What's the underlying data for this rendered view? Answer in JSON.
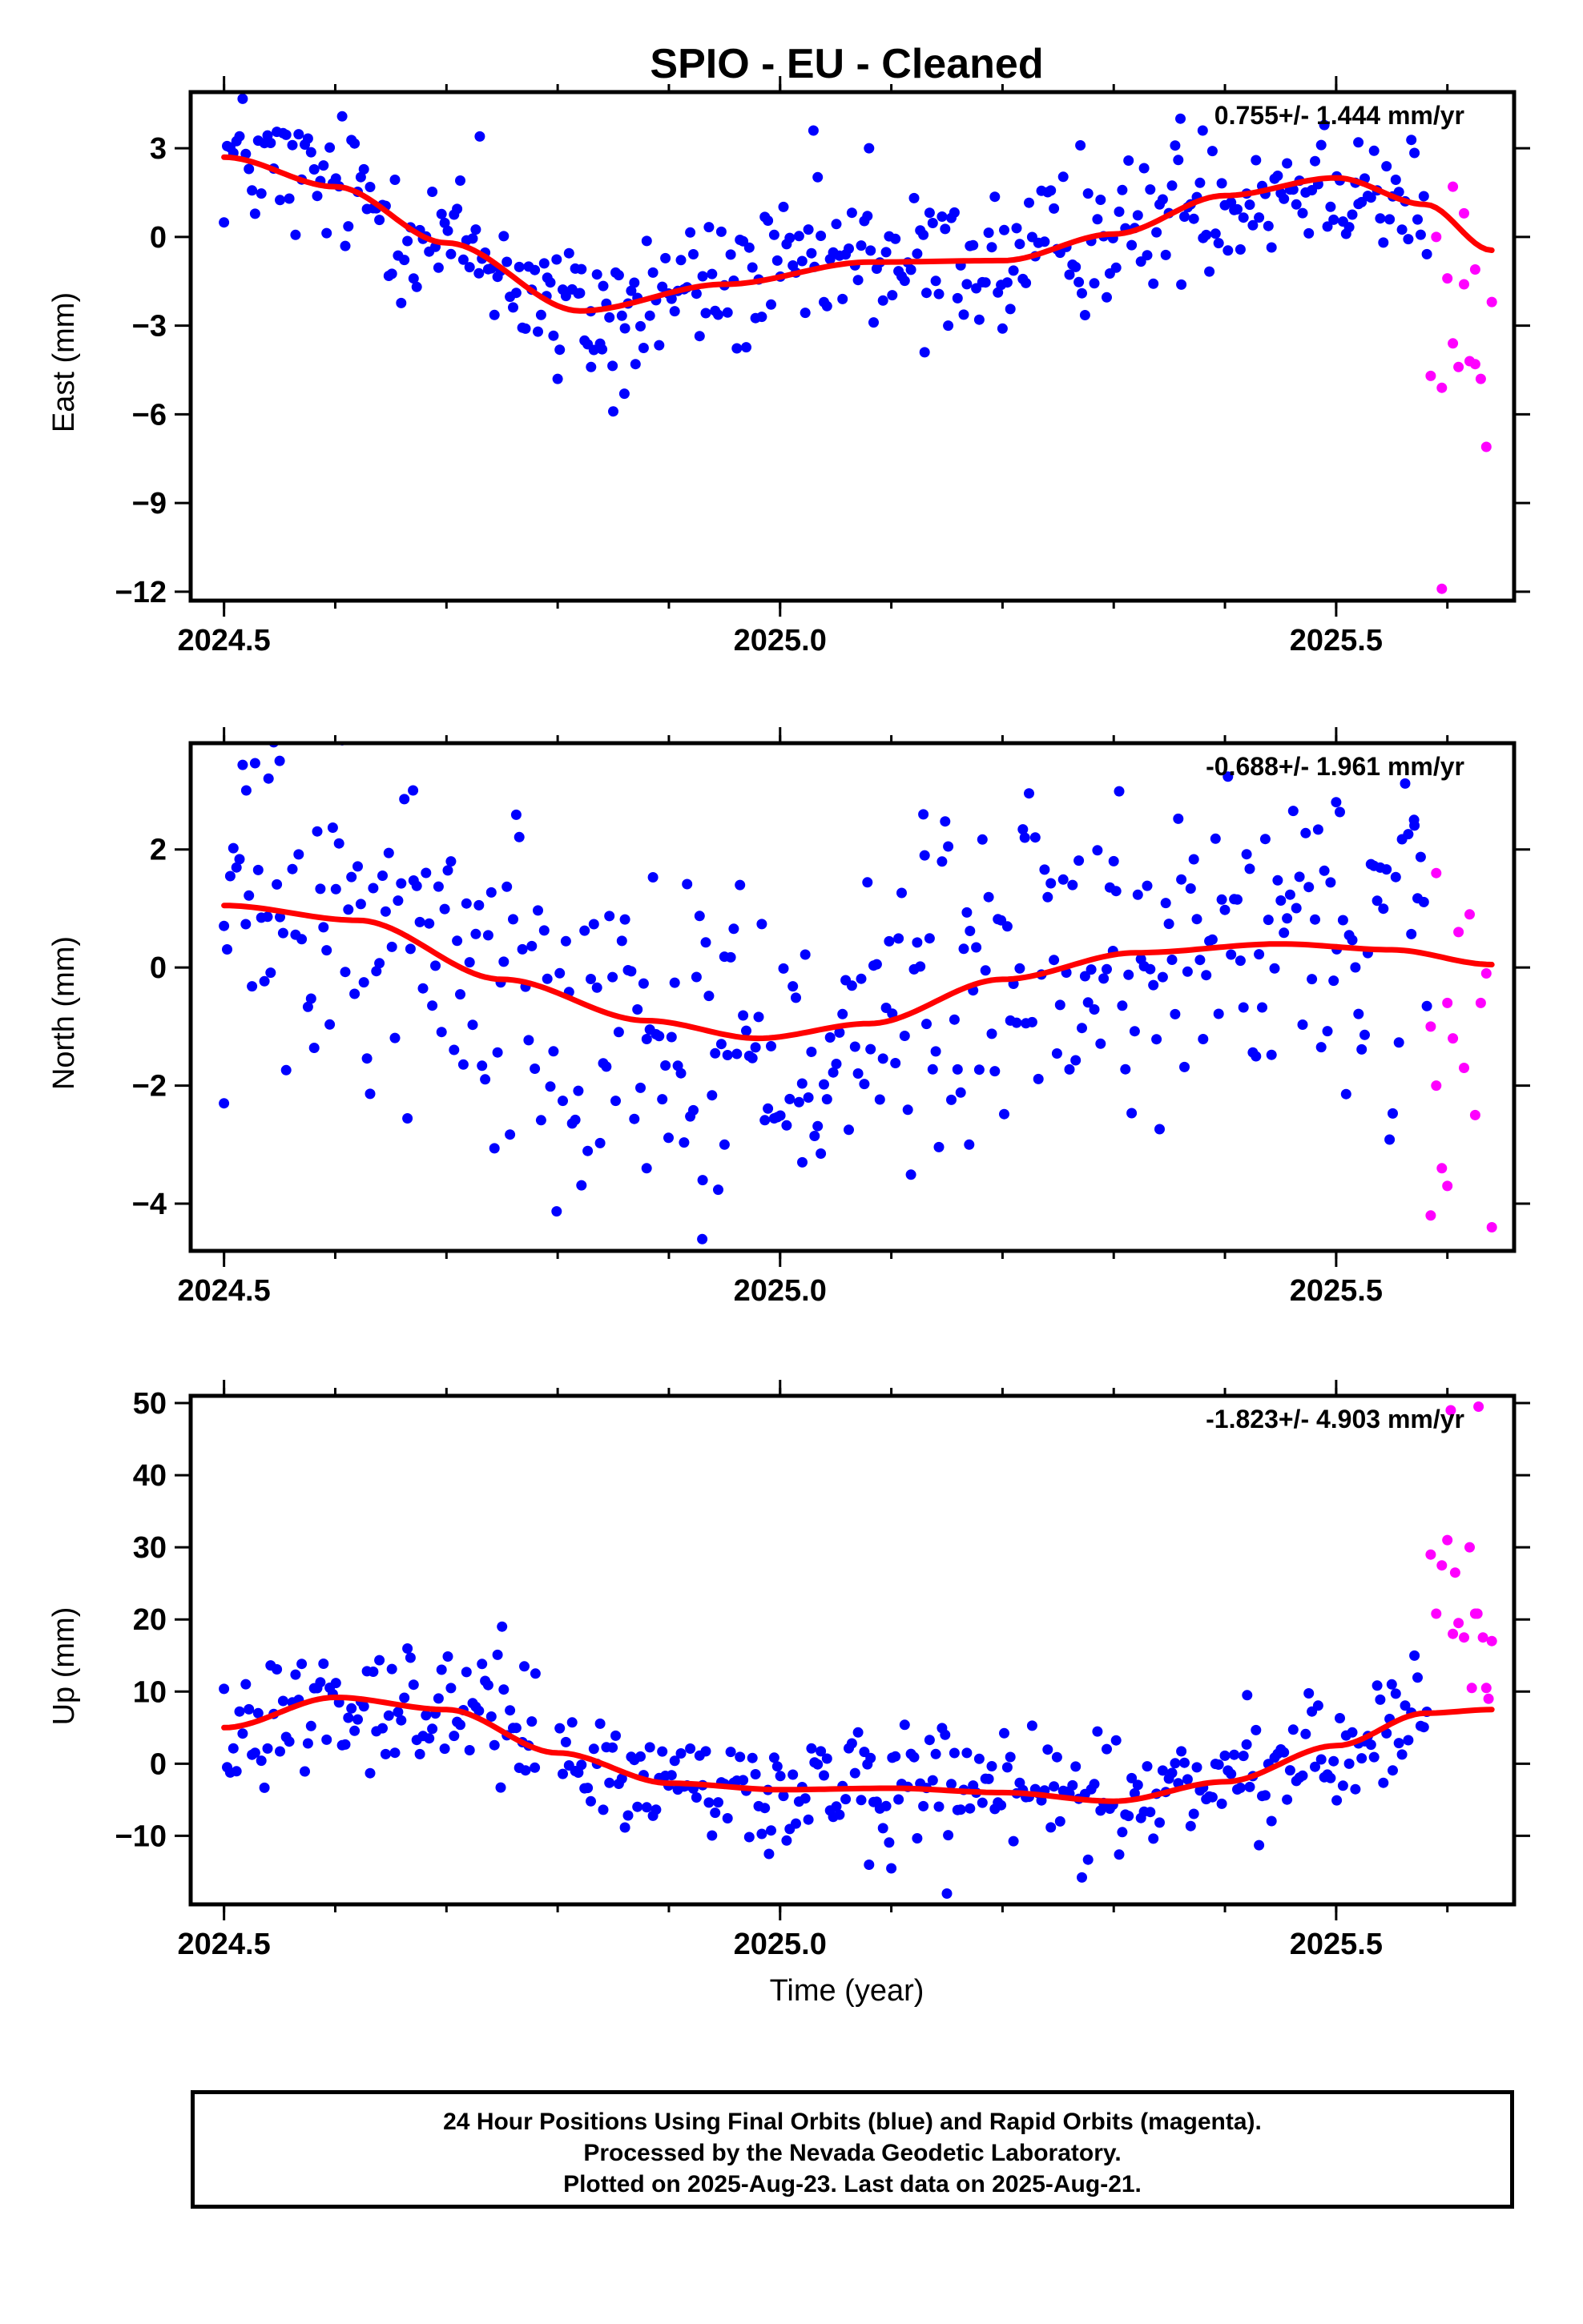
{
  "title": "SPIO  - EU - Cleaned",
  "xlabel": "Time (year)",
  "colors": {
    "final": "#0000ff",
    "rapid": "#ff00ff",
    "trend": "#ff0000",
    "frame": "#000000"
  },
  "footer": {
    "line1": "24 Hour Positions Using Final Orbits (blue) and Rapid Orbits (magenta).",
    "line2": "Processed by the Nevada Geodetic Laboratory.",
    "line3": "Plotted on 2025-Aug-23. Last data on 2025-Aug-21."
  },
  "chart_data": [
    {
      "type": "scatter",
      "ylabel": "East (mm)",
      "rate_label": "0.755+/- 1.444 mm/yr",
      "xlim": [
        2024.47,
        2025.66
      ],
      "ylim": [
        -12.3,
        4.9
      ],
      "x_ticks": [
        2024.5,
        2025.0,
        2025.5
      ],
      "x_tick_labels": [
        "2024.5",
        "2025.0",
        "2025.5"
      ],
      "y_ticks": [
        3,
        0,
        -3,
        -6,
        -9,
        -12
      ],
      "y_tick_labels": [
        "3",
        "0",
        "−3",
        "−6",
        "−9",
        "−12"
      ],
      "trend": {
        "x": [
          2024.5,
          2024.6,
          2024.7,
          2024.82,
          2024.95,
          2025.08,
          2025.2,
          2025.3,
          2025.4,
          2025.5,
          2025.58,
          2025.64
        ],
        "y": [
          2.7,
          1.7,
          -0.2,
          -2.5,
          -1.6,
          -0.85,
          -0.8,
          0.1,
          1.4,
          2.0,
          1.1,
          -0.45
        ]
      },
      "final_amp": 1.2,
      "final_extra": [
        [
          2024.73,
          3.4
        ],
        [
          2024.8,
          -4.8
        ],
        [
          2024.85,
          -5.9
        ],
        [
          2024.86,
          -5.3
        ],
        [
          2024.84,
          -3.8
        ],
        [
          2024.83,
          -4.4
        ],
        [
          2024.87,
          -4.3
        ],
        [
          2024.82,
          -1.9
        ],
        [
          2024.79,
          -2.0
        ],
        [
          2025.03,
          3.6
        ],
        [
          2025.08,
          3.0
        ],
        [
          2025.13,
          -3.9
        ],
        [
          2025.2,
          -3.1
        ],
        [
          2025.27,
          3.1
        ],
        [
          2025.36,
          4.0
        ],
        [
          2025.38,
          3.6
        ],
        [
          2025.52,
          3.2
        ]
      ],
      "rapid": [
        [
          2025.585,
          -4.7
        ],
        [
          2025.595,
          -5.1
        ],
        [
          2025.6,
          -1.4
        ],
        [
          2025.605,
          -3.6
        ],
        [
          2025.61,
          -4.4
        ],
        [
          2025.615,
          -1.6
        ],
        [
          2025.62,
          -4.2
        ],
        [
          2025.625,
          -4.3
        ],
        [
          2025.63,
          -4.8
        ],
        [
          2025.635,
          -7.1
        ],
        [
          2025.64,
          -2.2
        ],
        [
          2025.59,
          0.0
        ],
        [
          2025.605,
          1.7
        ],
        [
          2025.615,
          0.8
        ],
        [
          2025.625,
          -1.1
        ],
        [
          2025.595,
          -11.9
        ]
      ]
    },
    {
      "type": "scatter",
      "ylabel": "North (mm)",
      "rate_label": "-0.688+/- 1.961 mm/yr",
      "xlim": [
        2024.47,
        2025.66
      ],
      "ylim": [
        -4.8,
        3.8
      ],
      "x_ticks": [
        2024.5,
        2025.0,
        2025.5
      ],
      "x_tick_labels": [
        "2024.5",
        "2025.0",
        "2025.5"
      ],
      "y_ticks": [
        2,
        0,
        -2,
        -4
      ],
      "y_tick_labels": [
        "2",
        "0",
        "−2",
        "−4"
      ],
      "trend": {
        "x": [
          2024.5,
          2024.62,
          2024.75,
          2024.88,
          2024.98,
          2025.08,
          2025.2,
          2025.32,
          2025.45,
          2025.55,
          2025.64
        ],
        "y": [
          1.05,
          0.8,
          -0.2,
          -0.9,
          -1.2,
          -0.95,
          -0.2,
          0.25,
          0.4,
          0.3,
          0.05
        ]
      },
      "final_amp": 1.4,
      "final_extra": [
        [
          2024.5,
          -2.3
        ],
        [
          2024.52,
          3.0
        ],
        [
          2024.54,
          3.2
        ],
        [
          2024.55,
          3.5
        ],
        [
          2024.67,
          3.0
        ],
        [
          2024.88,
          -3.4
        ],
        [
          2024.93,
          -4.6
        ],
        [
          2024.95,
          -3.0
        ],
        [
          2025.02,
          -3.3
        ],
        [
          2025.13,
          1.9
        ],
        [
          2025.17,
          -3.0
        ],
        [
          2025.22,
          2.2
        ],
        [
          2025.5,
          2.8
        ],
        [
          2025.57,
          2.5
        ],
        [
          2025.3,
          1.8
        ]
      ],
      "rapid": [
        [
          2025.59,
          1.6
        ],
        [
          2025.585,
          -1.0
        ],
        [
          2025.59,
          -2.0
        ],
        [
          2025.595,
          -3.4
        ],
        [
          2025.6,
          -3.7
        ],
        [
          2025.605,
          -1.2
        ],
        [
          2025.61,
          0.6
        ],
        [
          2025.615,
          -1.7
        ],
        [
          2025.62,
          0.9
        ],
        [
          2025.625,
          -2.5
        ],
        [
          2025.63,
          -0.6
        ],
        [
          2025.635,
          -0.1
        ],
        [
          2025.64,
          -4.4
        ],
        [
          2025.585,
          -4.2
        ],
        [
          2025.6,
          -0.6
        ]
      ]
    },
    {
      "type": "scatter",
      "ylabel": "Up (mm)",
      "rate_label": "-1.823+/- 4.903 mm/yr",
      "xlim": [
        2024.47,
        2025.66
      ],
      "ylim": [
        -19.5,
        51
      ],
      "x_ticks": [
        2024.5,
        2025.0,
        2025.5
      ],
      "x_tick_labels": [
        "2024.5",
        "2025.0",
        "2025.5"
      ],
      "y_ticks": [
        50,
        40,
        30,
        20,
        10,
        0,
        -10
      ],
      "y_tick_labels": [
        "50",
        "40",
        "30",
        "20",
        "10",
        "0",
        "−10"
      ],
      "trend": {
        "x": [
          2024.5,
          2024.6,
          2024.7,
          2024.8,
          2024.9,
          2025.0,
          2025.1,
          2025.2,
          2025.3,
          2025.4,
          2025.5,
          2025.58,
          2025.64
        ],
        "y": [
          5.0,
          9.2,
          7.5,
          1.5,
          -2.7,
          -3.6,
          -3.4,
          -4.0,
          -5.2,
          -2.5,
          2.5,
          7.0,
          7.5
        ]
      },
      "final_amp": 4.0,
      "final_extra": [
        [
          2024.75,
          19.0
        ],
        [
          2024.77,
          13.5
        ],
        [
          2024.78,
          12.5
        ],
        [
          2025.15,
          -18.0
        ],
        [
          2025.08,
          -14.0
        ],
        [
          2025.1,
          -14.5
        ],
        [
          2025.42,
          9.5
        ],
        [
          2025.55,
          11.0
        ],
        [
          2024.99,
          -12.5
        ]
      ],
      "rapid": [
        [
          2025.585,
          29.0
        ],
        [
          2025.59,
          20.8
        ],
        [
          2025.595,
          27.5
        ],
        [
          2025.6,
          31.0
        ],
        [
          2025.605,
          18.0
        ],
        [
          2025.607,
          26.5
        ],
        [
          2025.61,
          19.5
        ],
        [
          2025.615,
          17.5
        ],
        [
          2025.62,
          30.0
        ],
        [
          2025.622,
          10.5
        ],
        [
          2025.627,
          20.8
        ],
        [
          2025.632,
          17.5
        ],
        [
          2025.635,
          10.5
        ],
        [
          2025.637,
          9.0
        ],
        [
          2025.64,
          17.0
        ],
        [
          2025.625,
          20.8
        ],
        [
          2025.628,
          49.5
        ],
        [
          2025.603,
          49.0
        ]
      ]
    }
  ]
}
